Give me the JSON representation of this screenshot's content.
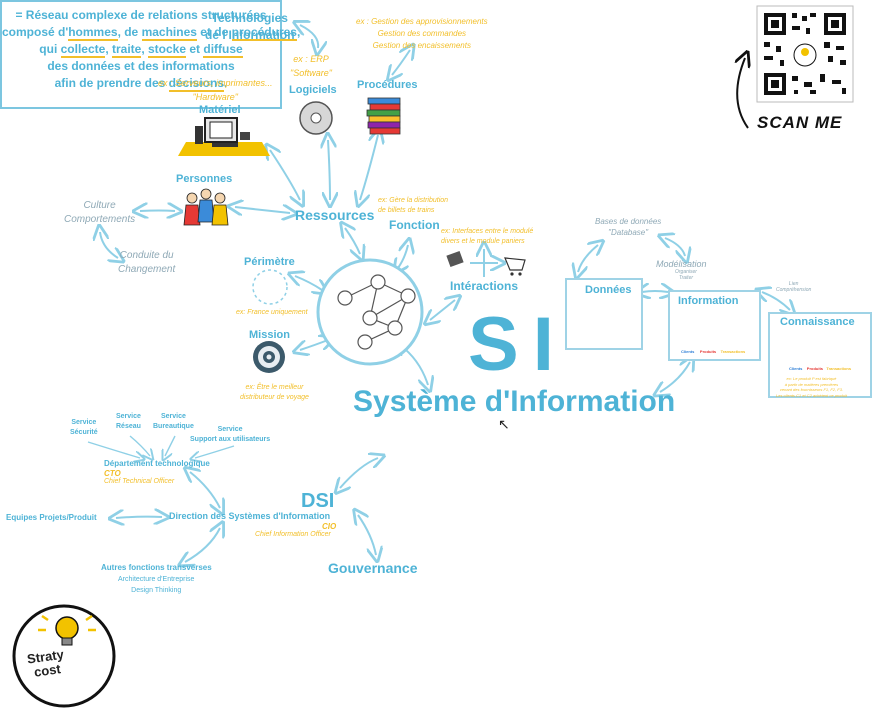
{
  "si": {
    "abbr": "SI",
    "title": "Système d'Information",
    "definition": [
      {
        "parts": [
          {
            "t": "= Réseau complexe de relations structurées",
            "u": false
          }
        ]
      },
      {
        "parts": [
          {
            "t": "composé d'",
            "u": false
          },
          {
            "t": "hommes",
            "u": true
          },
          {
            "t": ", de ",
            "u": false
          },
          {
            "t": "machines",
            "u": true
          },
          {
            "t": " et de ",
            "u": false
          },
          {
            "t": "procédures",
            "u": true
          },
          {
            "t": ",",
            "u": false
          }
        ]
      },
      {
        "parts": [
          {
            "t": "qui ",
            "u": false
          },
          {
            "t": "collecte",
            "u": true
          },
          {
            "t": ", ",
            "u": false
          },
          {
            "t": "traite",
            "u": true
          },
          {
            "t": ", ",
            "u": false
          },
          {
            "t": "stocke",
            "u": true
          },
          {
            "t": " et ",
            "u": false
          },
          {
            "t": "diffuse",
            "u": true
          }
        ]
      },
      {
        "parts": [
          {
            "t": "des données et des informations",
            "u": false
          }
        ]
      },
      {
        "parts": [
          {
            "t": "afin de prendre des ",
            "u": false
          },
          {
            "t": "décisions",
            "u": true
          },
          {
            "t": ".",
            "u": false
          }
        ]
      }
    ]
  },
  "tech": {
    "line1": "Technologies",
    "line2": "de l'Information"
  },
  "ex_procedures": [
    "ex : Gestion des approvisionnements",
    "Gestion des commandes",
    "Gestion des encaissements"
  ],
  "ex_software": {
    "line1": "ex : ERP",
    "line2": "\"Software\""
  },
  "logiciels": "Logiciels",
  "procedures": "Procédures",
  "ex_hardware": {
    "line1": "ex : Serveurs, imprimantes...",
    "line2": "\"Hardware\""
  },
  "materiel": "Matériel",
  "personnes": "Personnes",
  "culture": {
    "line1": "Culture",
    "line2": "Comportements"
  },
  "conduite": {
    "line1": "Conduite du",
    "line2": "Changement"
  },
  "ressources": "Ressources",
  "ex_fonction": [
    "ex: Gère la distribution",
    "de billets de trains"
  ],
  "fonction": "Fonction",
  "ex_interactions": [
    "ex: Interfaces entre le modulé",
    "divers et le module paniers"
  ],
  "interactions": "Intéractions",
  "perimetre": "Périmètre",
  "ex_perimetre": "ex: France uniquement",
  "mission": "Mission",
  "ex_mission": [
    "ex: Être le meilleur",
    "distributeur de voyage"
  ],
  "donnees_top": {
    "line1": "Bases de données",
    "line2": "\"Database\""
  },
  "modelisation": "Modélisation",
  "modelisation_sub": [
    "Organiser",
    "Traiter"
  ],
  "lien_sub": [
    "Lien",
    "Compréhension"
  ],
  "donnees": "Données",
  "information": "Information",
  "connaissance": "Connaissance",
  "info_labels": [
    "Clients",
    "Produits",
    "Transactions"
  ],
  "ex_connaissance": [
    "ex: Le produit P est fabriqué",
    "à partir de matières premières",
    "venant des fournisseurs F1, F2, F3.",
    "Les clients C1 et C2 achètent ce produit"
  ],
  "dsi": {
    "abbr": "DSI",
    "cio": "CIO",
    "cio_full": "Chief Information Officer",
    "direction": "Direction des Systèmes d'Information",
    "dept": "Département technologique",
    "cto": "CTO",
    "cto_full": "Chief Technical Officer",
    "services": [
      {
        "line1": "Service",
        "line2": "Sécurité"
      },
      {
        "line1": "Service",
        "line2": "Réseau"
      },
      {
        "line1": "Service",
        "line2": "Bureautique"
      },
      {
        "line1": "Service",
        "line2": "Support aux utilisateurs"
      }
    ],
    "equipes": "Equipes Projets/Produit",
    "autres": "Autres fonctions transverses",
    "autres_items": [
      "Architecture d'Entreprise",
      "Design Thinking"
    ],
    "gouvernance": "Gouvernance"
  },
  "scan": "SCAN ME",
  "logo": {
    "line1": "Straty",
    "line2": "cost"
  },
  "colors": {
    "accent": "#4eb3d6",
    "yellow": "#f2bf2a",
    "grey": "#8fa9b6"
  }
}
